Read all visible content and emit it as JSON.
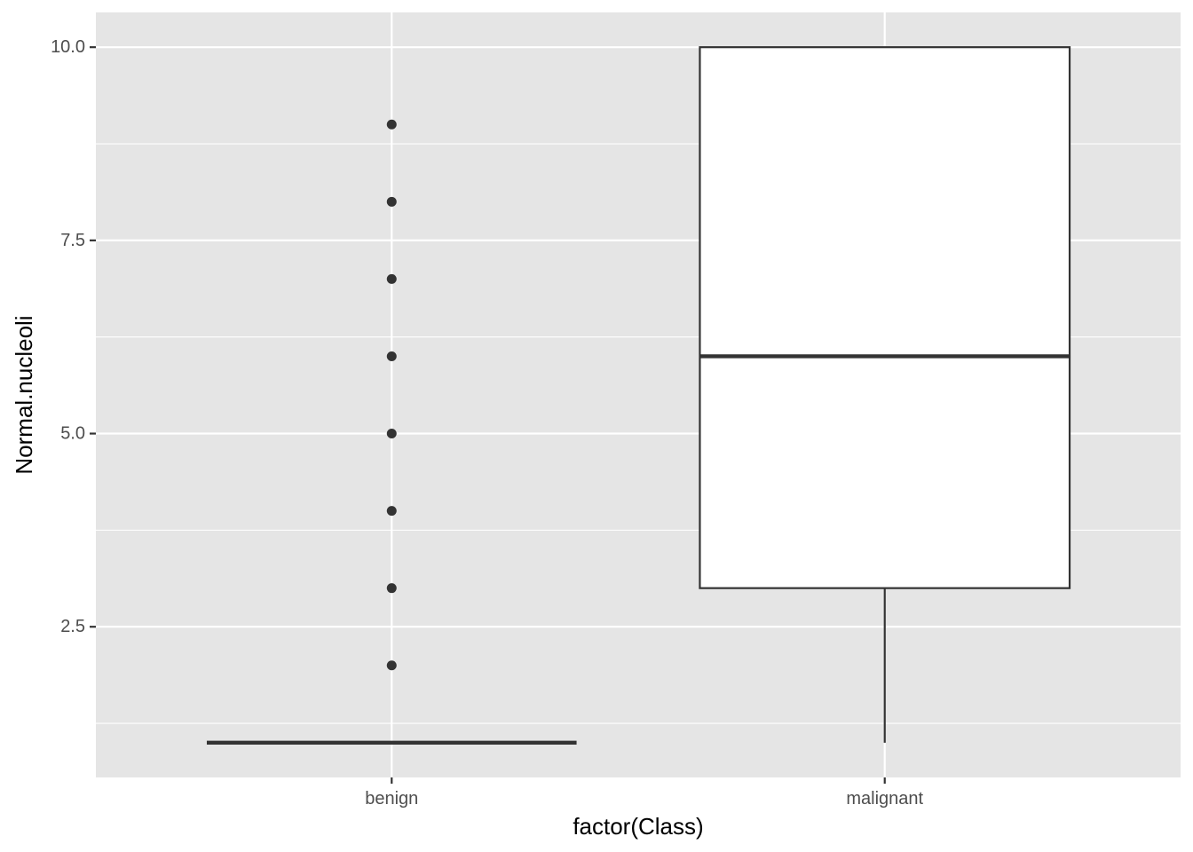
{
  "chart_data": {
    "type": "boxplot",
    "xlabel": "factor(Class)",
    "ylabel": "Normal.nucleoli",
    "categories": [
      "benign",
      "malignant"
    ],
    "ylim": [
      0.55,
      10.45
    ],
    "yticks": [
      2.5,
      5.0,
      7.5,
      10.0
    ],
    "ytick_labels": [
      "2.5",
      "5.0",
      "7.5",
      "10.0"
    ],
    "grid": true,
    "boxes": [
      {
        "category": "benign",
        "min": 1,
        "q1": 1,
        "median": 1,
        "q3": 1,
        "max": 1,
        "outliers": [
          2,
          3,
          4,
          5,
          6,
          7,
          8,
          9
        ]
      },
      {
        "category": "malignant",
        "min": 1,
        "q1": 3,
        "median": 6,
        "q3": 10,
        "max": 10,
        "outliers": []
      }
    ],
    "colors": {
      "panel": "#e5e5e5",
      "grid": "#ffffff",
      "box_line": "#333333",
      "box_fill": "#ffffff",
      "point": "#333333"
    }
  }
}
